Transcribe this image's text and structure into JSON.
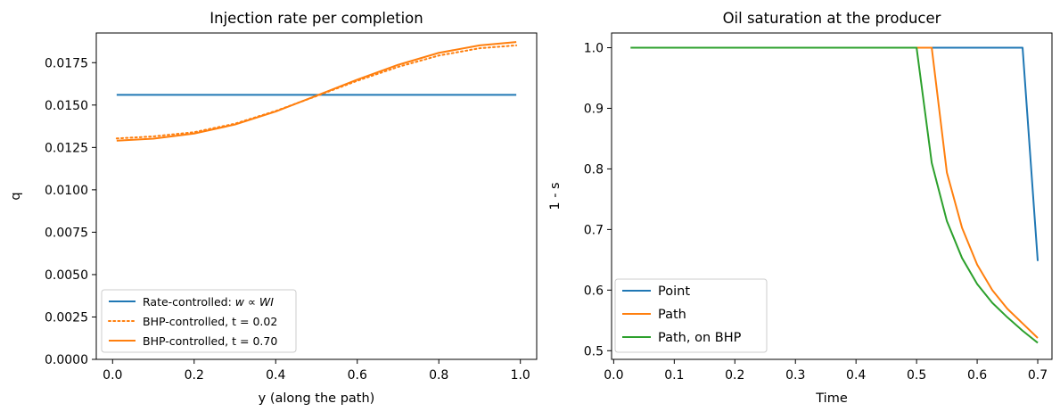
{
  "chart_data": [
    {
      "type": "line",
      "title": "Injection rate per completion",
      "xlabel": "y (along the path)",
      "ylabel": "q",
      "xlim": [
        -0.04,
        1.04
      ],
      "ylim": [
        0.0,
        0.01925
      ],
      "xticks": [
        0.0,
        0.2,
        0.4,
        0.6,
        0.8,
        1.0
      ],
      "xtick_labels": [
        "0.0",
        "0.2",
        "0.4",
        "0.6",
        "0.8",
        "1.0"
      ],
      "yticks": [
        0.0,
        0.0025,
        0.005,
        0.0075,
        0.01,
        0.0125,
        0.015,
        0.0175
      ],
      "ytick_labels": [
        "0.0000",
        "0.0025",
        "0.0050",
        "0.0075",
        "0.0100",
        "0.0125",
        "0.0150",
        "0.0175"
      ],
      "grid": false,
      "legend_position": "lower-left",
      "series": [
        {
          "name": "Rate-controlled: w ∝ WI",
          "color": "#1f77b4",
          "style": "solid",
          "x": [
            0.01,
            0.99
          ],
          "y": [
            0.0156,
            0.0156
          ]
        },
        {
          "name": "BHP-controlled, t = 0.02",
          "color": "#ff7f0e",
          "style": "dotted",
          "x": [
            0.01,
            0.1,
            0.2,
            0.3,
            0.4,
            0.5,
            0.6,
            0.7,
            0.8,
            0.9,
            0.99
          ],
          "y": [
            0.01303,
            0.01315,
            0.0134,
            0.0139,
            0.01465,
            0.01553,
            0.01643,
            0.01725,
            0.01792,
            0.01835,
            0.01852
          ]
        },
        {
          "name": "BHP-controlled, t = 0.70",
          "color": "#ff7f0e",
          "style": "solid",
          "x": [
            0.01,
            0.1,
            0.2,
            0.3,
            0.4,
            0.5,
            0.6,
            0.7,
            0.8,
            0.9,
            0.99
          ],
          "y": [
            0.0129,
            0.01302,
            0.01332,
            0.01385,
            0.01462,
            0.01555,
            0.0165,
            0.01737,
            0.01808,
            0.01852,
            0.01872
          ]
        }
      ]
    },
    {
      "type": "line",
      "title": "Oil saturation at the producer",
      "xlabel": "Time",
      "ylabel": "1 - s",
      "xlim": [
        -0.0035,
        0.7235
      ],
      "ylim": [
        0.4857,
        1.0243
      ],
      "xticks": [
        0.0,
        0.1,
        0.2,
        0.3,
        0.4,
        0.5,
        0.6,
        0.7
      ],
      "xtick_labels": [
        "0.0",
        "0.1",
        "0.2",
        "0.3",
        "0.4",
        "0.5",
        "0.6",
        "0.7"
      ],
      "yticks": [
        0.5,
        0.6,
        0.7,
        0.8,
        0.9,
        1.0
      ],
      "ytick_labels": [
        "0.5",
        "0.6",
        "0.7",
        "0.8",
        "0.9",
        "1.0"
      ],
      "grid": false,
      "legend_position": "lower-left",
      "series": [
        {
          "name": "Point",
          "color": "#1f77b4",
          "style": "solid",
          "x": [
            0.028,
            0.675,
            0.7
          ],
          "y": [
            1.0,
            1.0,
            0.648
          ]
        },
        {
          "name": "Path",
          "color": "#ff7f0e",
          "style": "solid",
          "x": [
            0.028,
            0.525,
            0.55,
            0.575,
            0.6,
            0.625,
            0.65,
            0.675,
            0.7
          ],
          "y": [
            1.0,
            1.0,
            0.794,
            0.703,
            0.642,
            0.6,
            0.569,
            0.545,
            0.521
          ]
        },
        {
          "name": "Path, on BHP",
          "color": "#2ca02c",
          "style": "solid",
          "x": [
            0.028,
            0.5,
            0.525,
            0.55,
            0.575,
            0.6,
            0.625,
            0.65,
            0.675,
            0.7
          ],
          "y": [
            1.0,
            1.0,
            0.81,
            0.714,
            0.653,
            0.61,
            0.579,
            0.555,
            0.533,
            0.513
          ]
        }
      ]
    }
  ]
}
